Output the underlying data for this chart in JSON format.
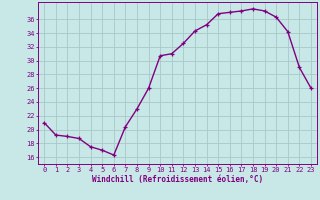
{
  "x": [
    0,
    1,
    2,
    3,
    4,
    5,
    6,
    7,
    8,
    9,
    10,
    11,
    12,
    13,
    14,
    15,
    16,
    17,
    18,
    19,
    20,
    21,
    22,
    23
  ],
  "y": [
    21.0,
    19.2,
    19.0,
    18.7,
    17.5,
    17.0,
    16.3,
    20.4,
    23.0,
    26.0,
    30.7,
    31.0,
    32.5,
    34.3,
    35.2,
    36.8,
    37.0,
    37.2,
    37.5,
    37.2,
    36.3,
    34.2,
    29.0,
    26.0
  ],
  "color": "#800080",
  "bg_color": "#c8e8e8",
  "grid_color": "#a8c8c8",
  "ylabel_ticks": [
    16,
    18,
    20,
    22,
    24,
    26,
    28,
    30,
    32,
    34,
    36
  ],
  "xlabel": "Windchill (Refroidissement éolien,°C)",
  "ylim": [
    15.0,
    38.5
  ],
  "xlim": [
    -0.5,
    23.5
  ],
  "line_width": 1.0,
  "marker": "+",
  "markersize": 3.0,
  "markeredgewidth": 0.9,
  "tick_fontsize": 5.0,
  "xlabel_fontsize": 5.5
}
